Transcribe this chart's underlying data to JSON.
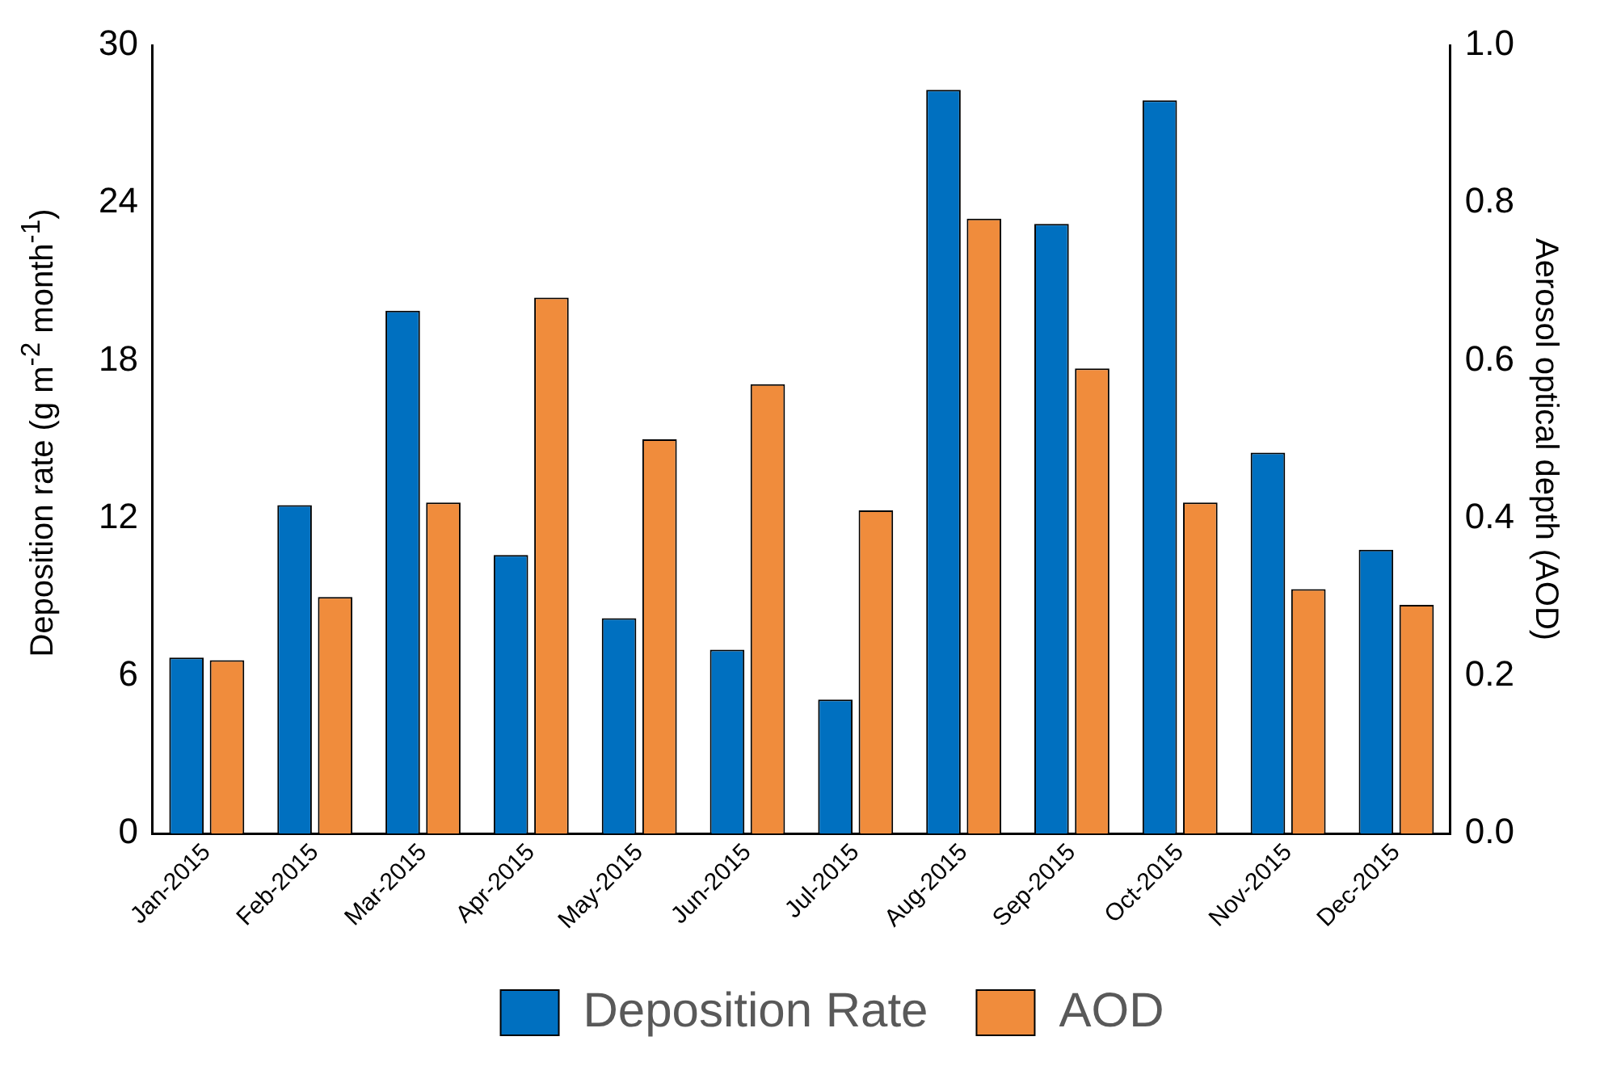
{
  "chart_data": {
    "type": "bar",
    "ylabel": "Deposition rate (g m$^{-2}$  month$^{-1}$)",
    "y2label": "Aerosol optical depth (AOD)",
    "categories": [
      "Jan-2015",
      "Feb-2015",
      "Mar-2015",
      "Apr-2015",
      "May-2015",
      "Jun-2015",
      "Jul-2015",
      "Aug-2015",
      "Sep-2015",
      "Oct-2015",
      "Nov-2015",
      "Dec-2015"
    ],
    "series": [
      {
        "name": "Deposition Rate",
        "color": "#0070c0",
        "values": [
          6.7,
          12.5,
          19.9,
          10.6,
          8.2,
          7.0,
          5.1,
          28.3,
          23.2,
          27.9,
          14.5,
          10.8
        ]
      },
      {
        "name": "AOD",
        "color": "#f08c3c",
        "axis": "y2",
        "values": [
          0.22,
          0.3,
          0.42,
          0.68,
          0.5,
          0.57,
          0.41,
          0.78,
          0.59,
          0.42,
          0.31,
          0.29
        ]
      }
    ],
    "ylim": [
      0,
      30
    ],
    "yticks": [
      0,
      6,
      12,
      18,
      24,
      30
    ],
    "y2lim": [
      0,
      1
    ],
    "y2ticks": [
      {
        "value": 0,
        "label": "0.0"
      },
      {
        "value": 0.2,
        "label": "0.2"
      },
      {
        "value": 0.4,
        "label": "0.4"
      },
      {
        "value": 0.6,
        "label": "0.6"
      },
      {
        "value": 0.8,
        "label": "0.8"
      },
      {
        "value": 1,
        "label": "1.0"
      }
    ],
    "legend": "bottom"
  }
}
